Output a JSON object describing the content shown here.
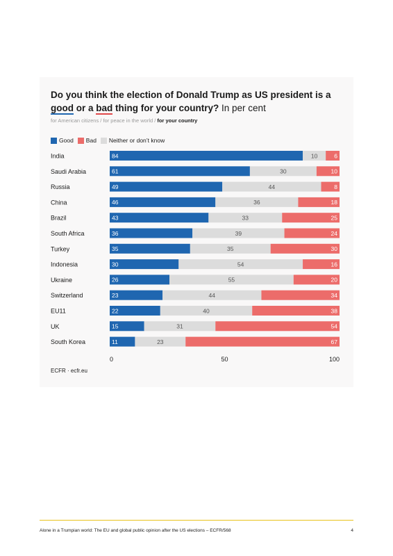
{
  "figure": {
    "title_main": "Do you think the election of Donald Trump as US president is a ",
    "title_good": "good",
    "title_mid": " or a ",
    "title_bad": "bad",
    "title_end": " thing for your country?",
    "title_suffix": " In per cent",
    "subtitle_inactive": "for American citizens / for peace in the world / ",
    "subtitle_active": "for your country",
    "source": "ECFR · ecfr.eu"
  },
  "colors": {
    "good": "#1f66b0",
    "bad": "#ec6c6a",
    "neither": "#dcdcdc"
  },
  "chart_data": {
    "type": "bar",
    "orientation": "horizontal-stacked",
    "categories": [
      "India",
      "Saudi Arabia",
      "Russia",
      "China",
      "Brazil",
      "South Africa",
      "Turkey",
      "Indonesia",
      "Ukraine",
      "Switzerland",
      "EU11",
      "UK",
      "South Korea"
    ],
    "series": [
      {
        "name": "Good",
        "values": [
          84,
          61,
          49,
          46,
          43,
          36,
          35,
          30,
          26,
          23,
          22,
          15,
          11
        ]
      },
      {
        "name": "Bad",
        "values": [
          6,
          10,
          8,
          18,
          25,
          24,
          30,
          16,
          20,
          34,
          38,
          54,
          67
        ]
      },
      {
        "name": "Neither or don’t know",
        "values": [
          10,
          30,
          44,
          36,
          33,
          39,
          35,
          54,
          55,
          44,
          40,
          31,
          23
        ]
      }
    ],
    "xlim": [
      0,
      100
    ],
    "xticks": [
      0,
      50,
      100
    ],
    "legend_position": "top-left",
    "grid": false
  },
  "footer": {
    "text": "Alone in a Trumpian world: The EU and global public opinion after the US elections – ECFR/568",
    "page": "4"
  }
}
